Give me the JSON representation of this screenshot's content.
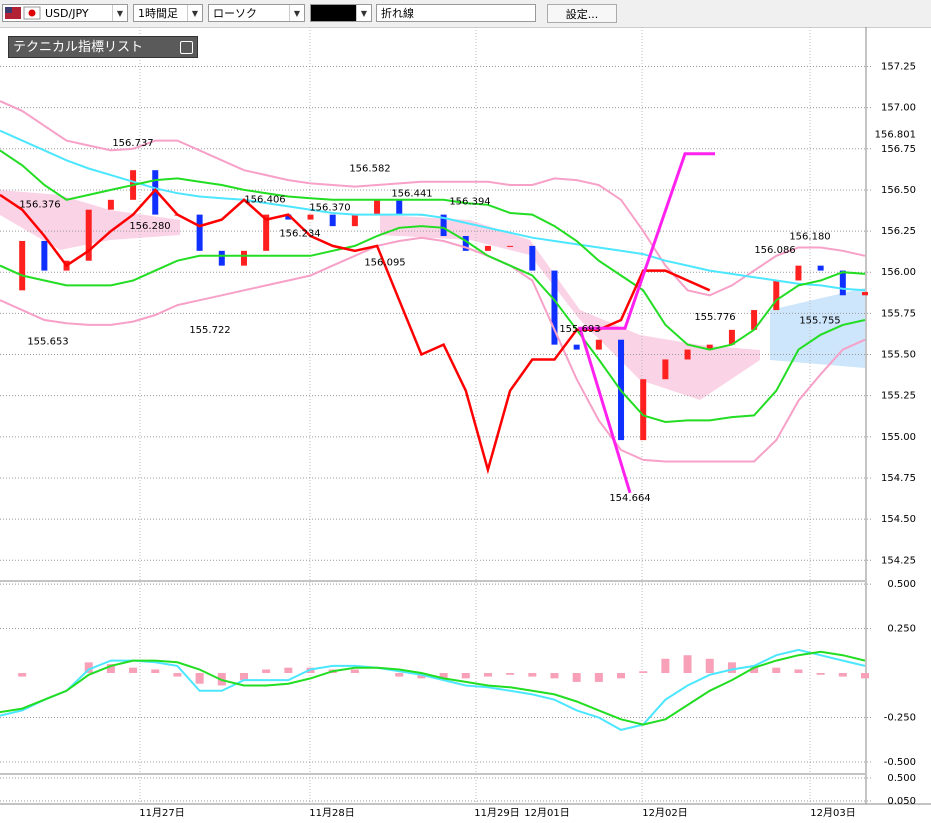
{
  "toolbar": {
    "symbol": "USD/JPY",
    "timeframe": "1時間足",
    "chart_style": "ローソク",
    "line_type": "折れ線",
    "settings": "設定..."
  },
  "indicator_list": "テクニカル指標リスト",
  "chart_data": [
    {
      "type": "candlestick",
      "x_labels": [
        "11月27日",
        "11月28日",
        "11月29日",
        "12月01日",
        "12月02日",
        "12月03日"
      ],
      "ylim": [
        154.13,
        157.49
      ],
      "yticks": [
        {
          "value": 157.25,
          "label": "157.25"
        },
        {
          "value": 157,
          "label": "157.00"
        },
        {
          "value": 156.75,
          "label": "156.75"
        },
        {
          "value": 156.5,
          "label": "156.50"
        },
        {
          "value": 156.25,
          "label": "156.25"
        },
        {
          "value": 156,
          "label": "156.00"
        },
        {
          "value": 155.75,
          "label": "155.75"
        },
        {
          "value": 155.5,
          "label": "155.50"
        },
        {
          "value": 155.25,
          "label": "155.25"
        },
        {
          "value": 155,
          "label": "155.00"
        },
        {
          "value": 154.75,
          "label": "154.75"
        },
        {
          "value": 154.5,
          "label": "154.50"
        },
        {
          "value": 154.25,
          "label": "154.25"
        }
      ],
      "grid": true,
      "current_price": 156.801,
      "close": {
        "up_color": "#ff2020",
        "down_color": "#1030ff",
        "values": [
          155.89,
          156.19,
          156.01,
          156.07,
          156.38,
          156.44,
          156.62,
          156.35,
          156.35,
          156.13,
          156.04,
          156.13,
          156.35,
          156.32,
          156.35,
          156.28,
          156.35,
          156.44,
          156.35,
          156.35,
          156.22,
          156.13,
          156.16,
          156.16,
          156.01,
          155.56,
          155.53,
          155.59,
          154.98,
          155.35,
          155.47,
          155.53,
          155.56,
          155.65,
          155.77,
          155.95,
          156.04,
          156.01,
          155.86,
          155.88
        ]
      },
      "series": [
        {
          "color": "#f7a0c8",
          "values": [
            157.04,
            156.98,
            156.89,
            156.8,
            156.77,
            156.74,
            156.75,
            156.8,
            156.8,
            156.74,
            156.68,
            156.62,
            156.59,
            156.56,
            156.54,
            156.53,
            156.52,
            156.53,
            156.54,
            156.55,
            156.55,
            156.55,
            156.55,
            156.53,
            156.53,
            156.57,
            156.56,
            156.53,
            156.44,
            156.25,
            156.04,
            155.89,
            155.86,
            155.92,
            156.01,
            156.1,
            156.15,
            156.15,
            156.13,
            156.1
          ]
        },
        {
          "color": "#f7a0c8",
          "values": [
            155.83,
            155.77,
            155.71,
            155.69,
            155.68,
            155.68,
            155.7,
            155.74,
            155.8,
            155.83,
            155.86,
            155.89,
            155.92,
            155.95,
            155.98,
            156.04,
            156.1,
            156.16,
            156.19,
            156.21,
            156.19,
            156.15,
            156.1,
            156.04,
            155.95,
            155.65,
            155.35,
            155.1,
            154.92,
            154.86,
            154.85,
            154.85,
            154.85,
            154.85,
            154.85,
            154.98,
            155.22,
            155.38,
            155.53,
            155.59
          ]
        },
        {
          "color": "#4de6ff",
          "values": [
            156.86,
            156.8,
            156.74,
            156.68,
            156.63,
            156.59,
            156.55,
            156.51,
            156.48,
            156.46,
            156.45,
            156.44,
            156.42,
            156.4,
            156.38,
            156.36,
            156.35,
            156.35,
            156.35,
            156.35,
            156.33,
            156.3,
            156.27,
            156.24,
            156.21,
            156.19,
            156.17,
            156.15,
            156.13,
            156.11,
            156.07,
            156.04,
            156.01,
            155.99,
            155.97,
            155.95,
            155.93,
            155.92,
            155.9,
            155.89
          ]
        },
        {
          "color": "#22dd22",
          "values": [
            156.74,
            156.65,
            156.53,
            156.44,
            156.47,
            156.5,
            156.53,
            156.56,
            156.57,
            156.55,
            156.53,
            156.5,
            156.48,
            156.46,
            156.45,
            156.44,
            156.44,
            156.44,
            156.44,
            156.44,
            156.44,
            156.42,
            156.41,
            156.36,
            156.35,
            156.28,
            156.19,
            156.07,
            155.98,
            155.89,
            155.68,
            155.56,
            155.53,
            155.56,
            155.65,
            155.83,
            155.92,
            155.95,
            156,
            155.99
          ]
        },
        {
          "color": "#22dd22",
          "values": [
            156.04,
            155.98,
            155.95,
            155.92,
            155.92,
            155.92,
            155.95,
            156.01,
            156.07,
            156.1,
            156.1,
            156.1,
            156.1,
            156.1,
            156.1,
            156.13,
            156.16,
            156.22,
            156.27,
            156.28,
            156.27,
            156.19,
            156.1,
            156.04,
            155.98,
            155.83,
            155.65,
            155.47,
            155.28,
            155.13,
            155.09,
            155.1,
            155.1,
            155.12,
            155.13,
            155.28,
            155.53,
            155.62,
            155.68,
            155.71
          ]
        },
        {
          "color": "#ff0000",
          "values": [
            156.47,
            156.38,
            156.22,
            156.04,
            156.13,
            156.25,
            156.35,
            156.5,
            156.35,
            156.28,
            156.32,
            156.44,
            156.32,
            156.35,
            156.22,
            156.16,
            156.13,
            156.16,
            155.83,
            155.5,
            155.56,
            155.28,
            154.8,
            155.28,
            155.47,
            155.47,
            155.65,
            155.65,
            155.71,
            156.01,
            156.01,
            155.95,
            155.89,
            null,
            null,
            null,
            null,
            null,
            null,
            null
          ]
        }
      ],
      "zigzag": {
        "color": "#ff22ee",
        "values": [
          154.66,
          155.66,
          155.66,
          156.72,
          156.72
        ]
      },
      "annotations": {
        "values": [
          156.737,
          156.376,
          156.28,
          155.653,
          156.406,
          156.234,
          155.722,
          156.37,
          156.582,
          156.441,
          156.095,
          156.394,
          155.693,
          154.664,
          155.776,
          156.086,
          156.18,
          155.755
        ],
        "value_labels": [
          "156.737",
          "156.376",
          "156.280",
          "155.653",
          "156.406",
          "156.234",
          "155.722",
          "156.370",
          "156.582",
          "156.441",
          "156.095",
          "156.394",
          "155.693",
          "154.664",
          "155.776",
          "156.086",
          "156.180",
          "155.755"
        ]
      }
    },
    {
      "type": "line",
      "ylim": [
        -0.562,
        0.506
      ],
      "yticks": [
        {
          "value": 0.5,
          "label": "0.500"
        },
        {
          "value": 0.25,
          "label": "0.250"
        },
        {
          "value": -0.25,
          "label": "-0.250"
        },
        {
          "value": -0.5,
          "label": "-0.500"
        }
      ],
      "grid": true,
      "histogram": {
        "color": "#f7a0b8",
        "values": [
          0,
          -0.02,
          0,
          0,
          0.06,
          0.05,
          0.03,
          0.02,
          -0.02,
          -0.06,
          -0.07,
          -0.04,
          0.02,
          0.03,
          0.03,
          0.02,
          0.02,
          0,
          -0.02,
          -0.03,
          -0.03,
          -0.03,
          -0.02,
          -0.01,
          -0.02,
          -0.03,
          -0.05,
          -0.05,
          -0.03,
          0.01,
          0.08,
          0.1,
          0.08,
          0.06,
          0.04,
          0.03,
          0.02,
          -0.01,
          -0.02,
          -0.03
        ]
      },
      "series": [
        {
          "color": "#4de6ff",
          "values": [
            -0.24,
            -0.21,
            -0.15,
            -0.1,
            0.02,
            0.07,
            0.07,
            0.06,
            0.04,
            -0.1,
            -0.1,
            -0.04,
            -0.04,
            -0.04,
            0.02,
            0.04,
            0.04,
            0.03,
            0.01,
            -0.01,
            -0.04,
            -0.07,
            -0.08,
            -0.1,
            -0.12,
            -0.15,
            -0.21,
            -0.25,
            -0.32,
            -0.29,
            -0.15,
            -0.07,
            -0.01,
            0.02,
            0.04,
            0.1,
            0.13,
            0.1,
            0.07,
            0.04
          ]
        },
        {
          "color": "#22dd22",
          "values": [
            -0.22,
            -0.2,
            -0.15,
            -0.1,
            -0.01,
            0.04,
            0.07,
            0.07,
            0.06,
            0.02,
            -0.04,
            -0.07,
            -0.07,
            -0.06,
            -0.03,
            0.01,
            0.03,
            0.03,
            0.02,
            0,
            -0.03,
            -0.05,
            -0.07,
            -0.08,
            -0.1,
            -0.12,
            -0.16,
            -0.21,
            -0.26,
            -0.29,
            -0.26,
            -0.18,
            -0.1,
            -0.04,
            0.03,
            0.07,
            0.1,
            0.12,
            0.1,
            0.07
          ]
        }
      ]
    },
    {
      "type": "line",
      "ylim": [
        0.011,
        0.559
      ],
      "yticks": [
        {
          "value": 0.5,
          "label": "0.500"
        },
        {
          "value": 0.05,
          "label": "0.050"
        }
      ],
      "grid": true
    }
  ]
}
